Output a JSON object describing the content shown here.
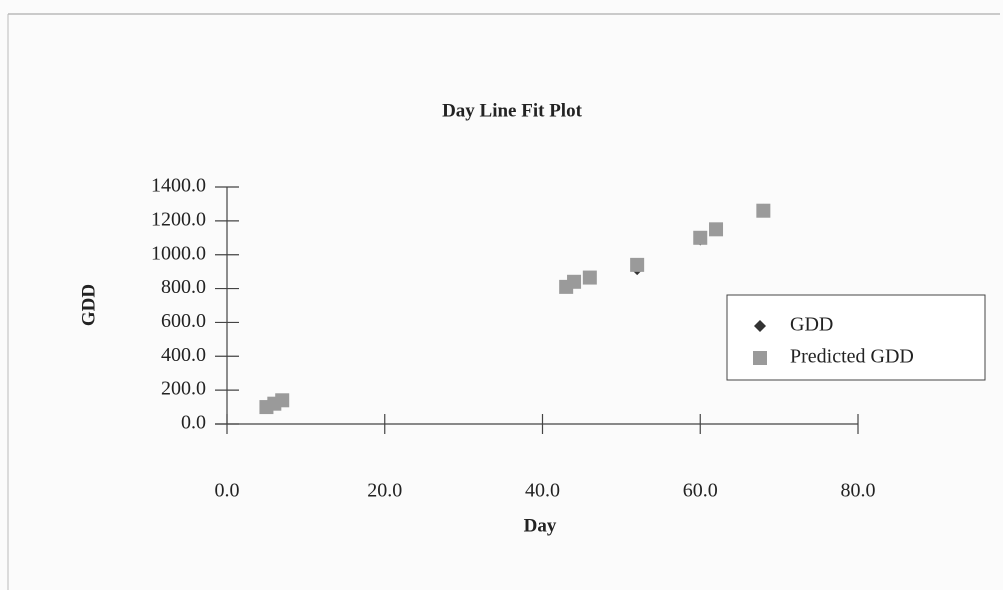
{
  "chart_data": {
    "type": "scatter",
    "title": "Day Line Fit  Plot",
    "x_label": "Day",
    "y_label": "GDD",
    "x": [
      5,
      6,
      7,
      43,
      44,
      46,
      52,
      60,
      62,
      68
    ],
    "series": [
      {
        "name": "GDD",
        "color": "#333333",
        "marker": "diamond",
        "values": [
          95,
          115,
          140,
          810,
          840,
          870,
          915,
          1090,
          1150,
          1265
        ]
      },
      {
        "name": "Predicted GDD",
        "color": "#9a9a9a",
        "marker": "square",
        "values": [
          100,
          120,
          140,
          810,
          840,
          865,
          940,
          1100,
          1150,
          1260
        ]
      }
    ],
    "xlim": [
      0,
      80
    ],
    "ylim": [
      0,
      1400
    ],
    "xticks": [
      {
        "value": 0,
        "label": "0.0"
      },
      {
        "value": 20,
        "label": "20.0"
      },
      {
        "value": 40,
        "label": "40.0"
      },
      {
        "value": 60,
        "label": "60.0"
      },
      {
        "value": 80,
        "label": "80.0"
      }
    ],
    "yticks": [
      {
        "value": 0,
        "label": "0.0"
      },
      {
        "value": 200,
        "label": "200.0"
      },
      {
        "value": 400,
        "label": "400.0"
      },
      {
        "value": 600,
        "label": "600.0"
      },
      {
        "value": 800,
        "label": "800.0"
      },
      {
        "value": 1000,
        "label": "1000.0"
      },
      {
        "value": 1200,
        "label": "1200.0"
      },
      {
        "value": 1400,
        "label": "1400.0"
      }
    ],
    "legend": "right"
  }
}
